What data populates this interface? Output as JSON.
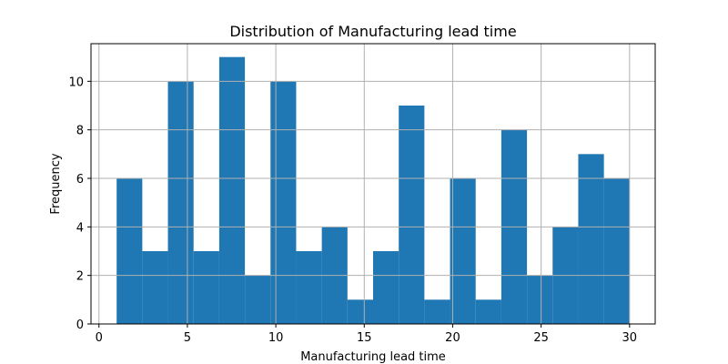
{
  "chart_data": {
    "type": "bar",
    "title": "Distribution of Manufacturing lead time",
    "xlabel": "Manufacturing lead time",
    "ylabel": "Frequency",
    "bin_edges": [
      1,
      2.45,
      3.9,
      5.35,
      6.8,
      8.25,
      9.7,
      11.15,
      12.6,
      14.05,
      15.5,
      16.95,
      18.4,
      19.85,
      21.3,
      22.75,
      24.2,
      25.65,
      27.1,
      28.55,
      30
    ],
    "values": [
      6,
      3,
      10,
      3,
      11,
      2,
      10,
      3,
      4,
      1,
      3,
      9,
      1,
      6,
      1,
      8,
      2,
      4,
      7,
      6
    ],
    "xlim": [
      -0.45,
      31.45
    ],
    "ylim": [
      0,
      11.55
    ],
    "xticks": [
      0,
      5,
      10,
      15,
      20,
      25,
      30
    ],
    "yticks": [
      0,
      2,
      4,
      6,
      8,
      10
    ],
    "grid": true,
    "bar_color": "#1f77b4",
    "grid_color": "#b0b0b0"
  }
}
